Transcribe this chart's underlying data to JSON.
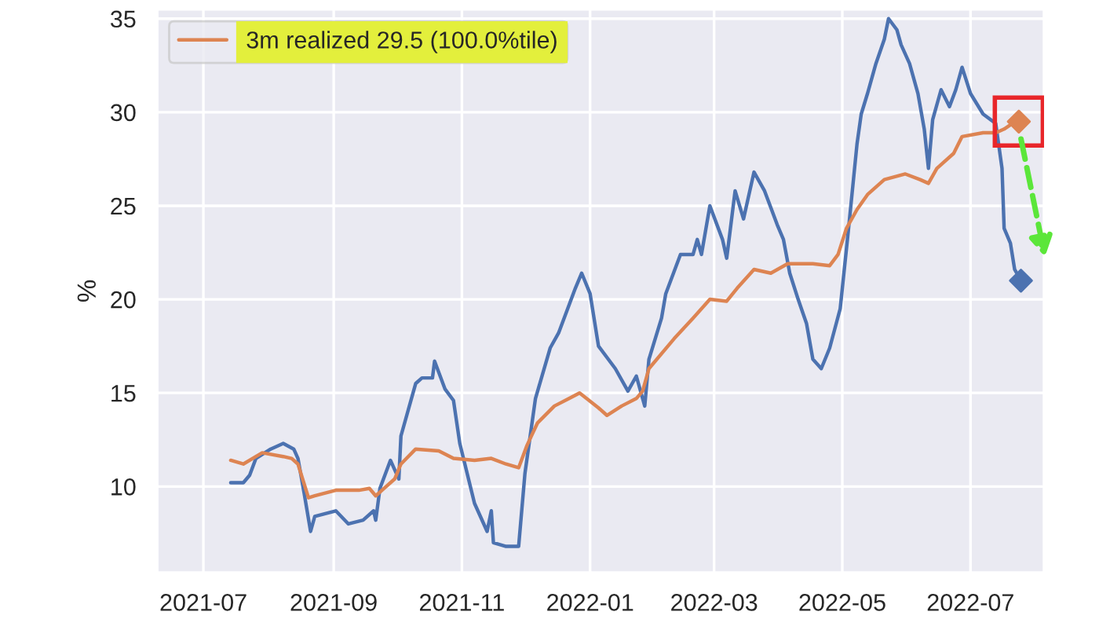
{
  "chart_data": {
    "type": "line",
    "ylabel": "%",
    "xlim": [
      "2021-06-09",
      "2022-08-05"
    ],
    "ylim": [
      5.4,
      35.5
    ],
    "xticks": [
      {
        "value": "2021-07-01",
        "label": "2021-07"
      },
      {
        "value": "2021-09-01",
        "label": "2021-09"
      },
      {
        "value": "2021-11-01",
        "label": "2021-11"
      },
      {
        "value": "2022-01-01",
        "label": "2022-01"
      },
      {
        "value": "2022-03-01",
        "label": "2022-03"
      },
      {
        "value": "2022-05-01",
        "label": "2022-05"
      },
      {
        "value": "2022-07-01",
        "label": "2022-07"
      }
    ],
    "yticks": [
      10,
      15,
      20,
      25,
      30,
      35
    ],
    "grid": true,
    "legend": "top left",
    "series": [
      {
        "color": "#4c72b0",
        "x": [
          "2021-07-14",
          "2021-07-20",
          "2021-07-23",
          "2021-07-26",
          "2021-08-02",
          "2021-08-08",
          "2021-08-13",
          "2021-08-15",
          "2021-08-18",
          "2021-08-21",
          "2021-08-23",
          "2021-09-02",
          "2021-09-08",
          "2021-09-15",
          "2021-09-20",
          "2021-09-21",
          "2021-09-23",
          "2021-09-28",
          "2021-10-02",
          "2021-10-03",
          "2021-10-10",
          "2021-10-13",
          "2021-10-18",
          "2021-10-19",
          "2021-10-24",
          "2021-10-28",
          "2021-10-31",
          "2021-11-07",
          "2021-11-13",
          "2021-11-15",
          "2021-11-16",
          "2021-11-22",
          "2021-11-28",
          "2021-12-01",
          "2021-12-06",
          "2021-12-13",
          "2021-12-17",
          "2021-12-25",
          "2021-12-28",
          "2022-01-01",
          "2022-01-05",
          "2022-01-13",
          "2022-01-19",
          "2022-01-23",
          "2022-01-27",
          "2022-01-29",
          "2022-02-04",
          "2022-02-06",
          "2022-02-13",
          "2022-02-19",
          "2022-02-21",
          "2022-02-23",
          "2022-02-27",
          "2022-03-05",
          "2022-03-07",
          "2022-03-11",
          "2022-03-15",
          "2022-03-20",
          "2022-03-25",
          "2022-03-31",
          "2022-04-03",
          "2022-04-06",
          "2022-04-10",
          "2022-04-14",
          "2022-04-17",
          "2022-04-21",
          "2022-04-25",
          "2022-04-30",
          "2022-05-04",
          "2022-05-08",
          "2022-05-10",
          "2022-05-13",
          "2022-05-17",
          "2022-05-21",
          "2022-05-23",
          "2022-05-27",
          "2022-05-29",
          "2022-06-02",
          "2022-06-06",
          "2022-06-09",
          "2022-06-11",
          "2022-06-13",
          "2022-06-17",
          "2022-06-21",
          "2022-06-24",
          "2022-06-27",
          "2022-07-01",
          "2022-07-07",
          "2022-07-13",
          "2022-07-16",
          "2022-07-17",
          "2022-07-20",
          "2022-07-22",
          "2022-07-25"
        ],
        "values": [
          10.2,
          10.2,
          10.6,
          11.5,
          12.0,
          12.3,
          12.0,
          11.5,
          9.6,
          7.6,
          8.4,
          8.7,
          8.0,
          8.2,
          8.7,
          8.2,
          9.9,
          11.4,
          10.4,
          12.7,
          15.5,
          15.8,
          15.8,
          16.7,
          15.2,
          14.6,
          12.3,
          9.1,
          7.6,
          8.7,
          7.0,
          6.8,
          6.8,
          10.7,
          14.7,
          17.4,
          18.2,
          20.6,
          21.4,
          20.3,
          17.5,
          16.3,
          15.1,
          15.9,
          14.3,
          16.8,
          19.0,
          20.3,
          22.4,
          22.4,
          23.2,
          22.4,
          25.0,
          23.2,
          22.2,
          25.8,
          24.3,
          26.8,
          25.8,
          24.0,
          23.2,
          21.4,
          20.0,
          18.7,
          16.8,
          16.3,
          17.4,
          19.5,
          23.8,
          28.3,
          29.9,
          31.0,
          32.6,
          33.9,
          35.0,
          34.4,
          33.6,
          32.6,
          31.0,
          29.1,
          27.0,
          29.6,
          31.2,
          30.3,
          31.2,
          32.4,
          31.0,
          29.9,
          29.4,
          27.0,
          23.8,
          23.0,
          21.6,
          21.0
        ]
      },
      {
        "name": "3m realized 29.5 (100.0%tile)",
        "color": "#dd8452",
        "x": [
          "2021-07-14",
          "2021-07-20",
          "2021-07-26",
          "2021-07-29",
          "2021-08-08",
          "2021-08-12",
          "2021-08-15",
          "2021-08-20",
          "2021-08-23",
          "2021-09-02",
          "2021-09-13",
          "2021-09-18",
          "2021-09-21",
          "2021-09-25",
          "2021-09-30",
          "2021-10-03",
          "2021-10-10",
          "2021-10-21",
          "2021-10-28",
          "2021-11-07",
          "2021-11-15",
          "2021-11-22",
          "2021-11-28",
          "2021-12-02",
          "2021-12-07",
          "2021-12-15",
          "2021-12-22",
          "2021-12-27",
          "2022-01-05",
          "2022-01-09",
          "2022-01-16",
          "2022-01-23",
          "2022-01-26",
          "2022-01-29",
          "2022-02-10",
          "2022-02-19",
          "2022-02-27",
          "2022-03-07",
          "2022-03-12",
          "2022-03-20",
          "2022-03-28",
          "2022-04-05",
          "2022-04-17",
          "2022-04-25",
          "2022-04-29",
          "2022-05-03",
          "2022-05-08",
          "2022-05-13",
          "2022-05-21",
          "2022-05-31",
          "2022-06-07",
          "2022-06-11",
          "2022-06-15",
          "2022-06-23",
          "2022-06-27",
          "2022-07-07",
          "2022-07-13",
          "2022-07-17",
          "2022-07-21",
          "2022-07-24"
        ],
        "values": [
          11.4,
          11.2,
          11.6,
          11.8,
          11.6,
          11.5,
          11.2,
          9.4,
          9.5,
          9.8,
          9.8,
          9.9,
          9.5,
          9.9,
          10.4,
          11.2,
          12.0,
          11.9,
          11.5,
          11.4,
          11.5,
          11.2,
          11.0,
          12.2,
          13.4,
          14.3,
          14.7,
          15.0,
          14.2,
          13.8,
          14.3,
          14.7,
          15.1,
          16.3,
          17.9,
          19.0,
          20.0,
          19.9,
          20.6,
          21.6,
          21.4,
          21.9,
          21.9,
          21.8,
          22.4,
          23.8,
          24.8,
          25.6,
          26.4,
          26.7,
          26.4,
          26.2,
          27.0,
          27.8,
          28.7,
          28.9,
          28.9,
          29.1,
          29.4,
          29.5
        ]
      },
      {
        "type": "scatter",
        "marker": "diamond",
        "color": "#4c72b0",
        "x": [
          "2022-07-25"
        ],
        "values": [
          21.0
        ]
      },
      {
        "type": "scatter",
        "marker": "diamond",
        "color": "#dd8452",
        "x": [
          "2022-07-24"
        ],
        "values": [
          29.5
        ]
      }
    ]
  }
}
